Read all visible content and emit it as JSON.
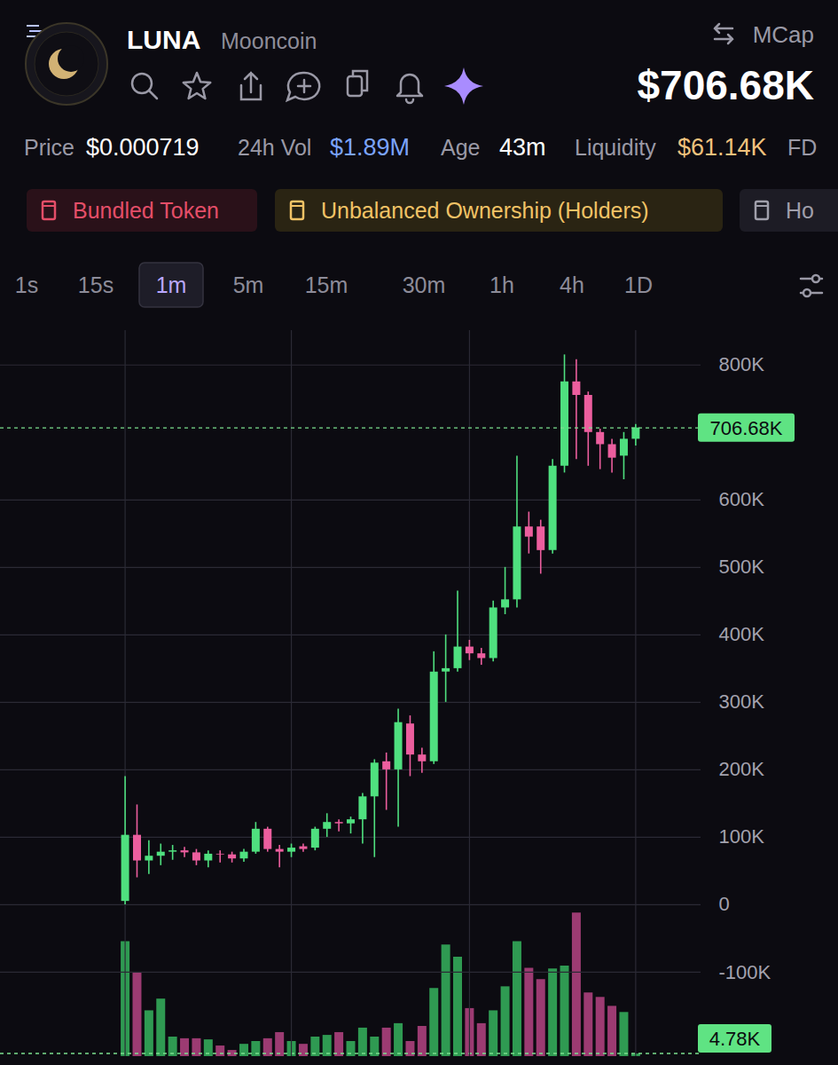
{
  "header": {
    "symbol": "LUNA",
    "name": "Mooncoin",
    "toggle": "MCap",
    "value": "$706.68K",
    "stats": [
      {
        "label": "Price",
        "value": "$0.000719"
      },
      {
        "label": "24h Vol",
        "value": "$1.89M"
      },
      {
        "label": "Age",
        "value": "43m"
      },
      {
        "label": "Liquidity",
        "value": "$61.14K"
      },
      {
        "label": "FD"
      }
    ],
    "badges": [
      "Bundled Token",
      "Unbalanced Ownership (Holders)",
      "Ho"
    ],
    "timeframes": [
      "1s",
      "15s",
      "1m",
      "5m",
      "15m",
      "30m",
      "1h",
      "4h",
      "1D"
    ],
    "selected_timeframe": "1m"
  },
  "chart_data": {
    "type": "candlestick",
    "x": [
      0,
      1,
      2,
      3,
      4,
      5,
      6,
      7,
      8,
      9,
      10,
      11,
      12,
      13,
      14,
      15,
      16,
      17,
      18,
      19,
      20,
      21,
      22,
      23,
      24,
      25,
      26,
      27,
      28,
      29,
      30,
      31,
      32,
      33,
      34,
      35,
      36,
      37,
      38,
      39,
      40,
      41,
      42,
      43
    ],
    "xlim": [
      -10.5,
      48.5
    ],
    "xticks": [
      0,
      14,
      29,
      43
    ],
    "tick_labels": "y",
    "ylim": [
      -225000,
      851000
    ],
    "yticks": [
      {
        "value": -100000,
        "label": "-100K"
      },
      0,
      {
        "value": 100000,
        "label": "100K"
      },
      {
        "value": 200000,
        "label": "200K"
      },
      {
        "value": 300000,
        "label": "300K"
      },
      {
        "value": 400000,
        "label": "400K"
      },
      {
        "value": 500000,
        "label": "500K"
      },
      {
        "value": 600000,
        "label": "600K"
      },
      {
        "value": 800000,
        "label": "800K"
      }
    ],
    "y2lim": [
      0,
      1300000
    ],
    "grid": true,
    "series": [
      {
        "type": "candlestick",
        "color": {
          "up": "#4fe07f",
          "down": "#ec5e9e"
        },
        "open": [
          5000,
          103000,
          65000,
          72000,
          78000,
          80000,
          77000,
          65000,
          75000,
          74000,
          68000,
          78000,
          112000,
          82000,
          78000,
          86000,
          84000,
          112000,
          122000,
          120000,
          126000,
          160000,
          212000,
          200000,
          268000,
          222000,
          212000,
          345000,
          350000,
          382000,
          372000,
          365000,
          440000,
          452000,
          560000,
          560000,
          525000,
          650000,
          775000,
          755000,
          700000,
          682000,
          665000,
          690000
        ],
        "high": [
          190000,
          148000,
          95000,
          90000,
          88000,
          85000,
          82000,
          80000,
          80000,
          78000,
          82000,
          122000,
          115000,
          88000,
          90000,
          90000,
          115000,
          135000,
          126000,
          130000,
          165000,
          215000,
          225000,
          290000,
          280000,
          232000,
          375000,
          400000,
          465000,
          392000,
          380000,
          450000,
          500000,
          665000,
          582000,
          570000,
          660000,
          815000,
          808000,
          760000,
          705000,
          690000,
          700000,
          712000
        ],
        "low": [
          0,
          40000,
          45000,
          58000,
          66000,
          70000,
          58000,
          55000,
          62000,
          62000,
          63000,
          75000,
          78000,
          55000,
          70000,
          78000,
          80000,
          100000,
          108000,
          105000,
          90000,
          70000,
          140000,
          115000,
          190000,
          195000,
          208000,
          300000,
          345000,
          362000,
          355000,
          360000,
          430000,
          440000,
          520000,
          490000,
          520000,
          640000,
          660000,
          650000,
          645000,
          640000,
          630000,
          680000
        ],
        "close": [
          103000,
          65000,
          72000,
          78000,
          80000,
          77000,
          65000,
          75000,
          74000,
          68000,
          78000,
          112000,
          82000,
          78000,
          84000,
          82000,
          112000,
          122000,
          120000,
          126000,
          160000,
          210000,
          200000,
          270000,
          222000,
          212000,
          345000,
          350000,
          382000,
          372000,
          365000,
          440000,
          452000,
          560000,
          545000,
          525000,
          650000,
          775000,
          755000,
          700000,
          682000,
          662000,
          690000,
          706680
        ]
      },
      {
        "type": "bar",
        "axis": "y2",
        "color": {
          "up": "#2f9a52",
          "down": "#9c3b72"
        },
        "values": [
          206000,
          150000,
          82000,
          103000,
          35000,
          32000,
          32000,
          30000,
          19000,
          11000,
          22000,
          27000,
          32000,
          43000,
          27000,
          22000,
          35000,
          38000,
          43000,
          27000,
          51000,
          35000,
          51000,
          59000,
          27000,
          54000,
          122000,
          200000,
          178000,
          86000,
          59000,
          82000,
          125000,
          206000,
          158000,
          138000,
          157000,
          162000,
          257000,
          114000,
          106000,
          90000,
          79000,
          4780
        ]
      }
    ],
    "annotations": [
      {
        "axis": "y",
        "value": 706680,
        "label": "706.68K"
      },
      {
        "axis": "y2",
        "value": 4780,
        "label": "4.78K"
      }
    ]
  }
}
